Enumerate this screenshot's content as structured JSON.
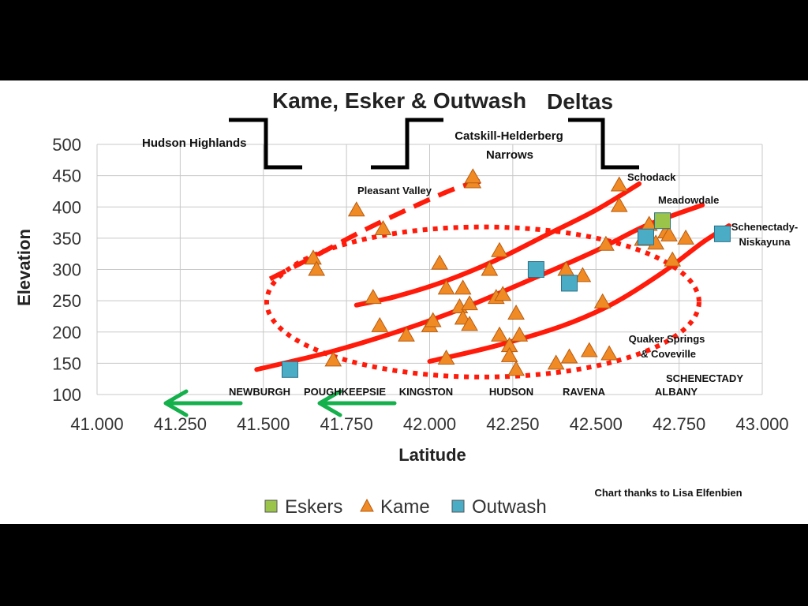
{
  "chart_data": {
    "type": "scatter",
    "title_part1": "Kame, Esker & Outwash",
    "title_part2": "Deltas",
    "xlabel": "Latitude",
    "ylabel": "Elevation",
    "xlim": [
      41.0,
      43.0
    ],
    "ylim": [
      100,
      500
    ],
    "x_ticks": [
      "41.000",
      "41.250",
      "41.500",
      "41.750",
      "42.000",
      "42.250",
      "42.500",
      "42.750",
      "43.000"
    ],
    "y_ticks": [
      "100",
      "150",
      "200",
      "250",
      "300",
      "350",
      "400",
      "450",
      "500"
    ],
    "grid": true,
    "legend_position": "bottom",
    "series": [
      {
        "name": "Eskers",
        "marker": "square",
        "color": "#9bc54a",
        "points": [
          [
            42.7,
            378
          ]
        ]
      },
      {
        "name": "Kame",
        "marker": "triangle",
        "color": "#f08a24",
        "points": [
          [
            41.65,
            318
          ],
          [
            41.66,
            300
          ],
          [
            41.71,
            155
          ],
          [
            41.78,
            395
          ],
          [
            41.83,
            255
          ],
          [
            41.85,
            210
          ],
          [
            41.86,
            365
          ],
          [
            41.93,
            195
          ],
          [
            42.0,
            210
          ],
          [
            42.01,
            218
          ],
          [
            42.03,
            310
          ],
          [
            42.05,
            270
          ],
          [
            42.05,
            158
          ],
          [
            42.09,
            240
          ],
          [
            42.1,
            270
          ],
          [
            42.1,
            222
          ],
          [
            42.12,
            212
          ],
          [
            42.12,
            245
          ],
          [
            42.13,
            440
          ],
          [
            42.13,
            448
          ],
          [
            42.18,
            300
          ],
          [
            42.2,
            255
          ],
          [
            42.21,
            330
          ],
          [
            42.21,
            195
          ],
          [
            42.22,
            260
          ],
          [
            42.24,
            178
          ],
          [
            42.24,
            162
          ],
          [
            42.26,
            230
          ],
          [
            42.26,
            140
          ],
          [
            42.27,
            195
          ],
          [
            42.38,
            150
          ],
          [
            42.41,
            300
          ],
          [
            42.42,
            160
          ],
          [
            42.46,
            290
          ],
          [
            42.48,
            170
          ],
          [
            42.52,
            248
          ],
          [
            42.53,
            340
          ],
          [
            42.54,
            165
          ],
          [
            42.57,
            435
          ],
          [
            42.57,
            402
          ],
          [
            42.64,
            348
          ],
          [
            42.66,
            372
          ],
          [
            42.68,
            342
          ],
          [
            42.71,
            360
          ],
          [
            42.72,
            355
          ],
          [
            42.73,
            315
          ],
          [
            42.77,
            350
          ]
        ]
      },
      {
        "name": "Outwash",
        "marker": "square",
        "color": "#4bacc6",
        "points": [
          [
            41.58,
            140
          ],
          [
            42.32,
            300
          ],
          [
            42.42,
            278
          ],
          [
            42.65,
            352
          ],
          [
            42.88,
            357
          ]
        ]
      }
    ],
    "trend_lines": [
      {
        "style": "dashed",
        "points": [
          [
            41.52,
            285
          ],
          [
            41.65,
            320
          ],
          [
            41.8,
            362
          ],
          [
            41.95,
            400
          ],
          [
            42.08,
            430
          ],
          [
            42.17,
            443
          ]
        ]
      },
      {
        "style": "solid",
        "points": [
          [
            41.78,
            243
          ],
          [
            41.9,
            257
          ],
          [
            42.05,
            282
          ],
          [
            42.2,
            315
          ],
          [
            42.35,
            355
          ],
          [
            42.5,
            395
          ],
          [
            42.63,
            437
          ]
        ]
      },
      {
        "style": "solid",
        "points": [
          [
            41.48,
            140
          ],
          [
            41.7,
            168
          ],
          [
            41.9,
            200
          ],
          [
            42.1,
            238
          ],
          [
            42.3,
            283
          ],
          [
            42.5,
            330
          ],
          [
            42.65,
            370
          ],
          [
            42.82,
            403
          ]
        ]
      },
      {
        "style": "solid",
        "points": [
          [
            42.0,
            153
          ],
          [
            42.2,
            178
          ],
          [
            42.4,
            210
          ],
          [
            42.55,
            245
          ],
          [
            42.7,
            295
          ],
          [
            42.82,
            343
          ],
          [
            42.9,
            370
          ]
        ]
      }
    ],
    "ellipse": {
      "center": [
        42.16,
        248
      ],
      "radius_x": 0.65,
      "radius_y": 120
    }
  },
  "annotations": {
    "hudson_highlands": "Hudson Highlands",
    "catskill_1": "Catskill-Helderberg",
    "catskill_2": "Narrows",
    "pleasant_valley": "Pleasant Valley",
    "schodack": "Schodack",
    "meadowdale": "Meadowdale",
    "schenectady_n1": "Schenectady-",
    "schenectady_n2": "Niskayuna",
    "quaker_1": "Quaker Springs",
    "quaker_2": "& Coveville",
    "schenectady": "SCHENECTADY",
    "albany": "ALBANY",
    "newburgh": "NEWBURGH",
    "poughkeepsie": "POUGHKEEPSIE",
    "kingston": "KINGSTON",
    "hudson": "HUDSON",
    "ravena": "RAVENA",
    "credit": "Chart thanks to Lisa Elfenbien"
  },
  "colors": {
    "trend": "#ff1a0a",
    "arrow": "#13b04b",
    "grid": "#c8c8c8",
    "bracket": "#000000"
  }
}
